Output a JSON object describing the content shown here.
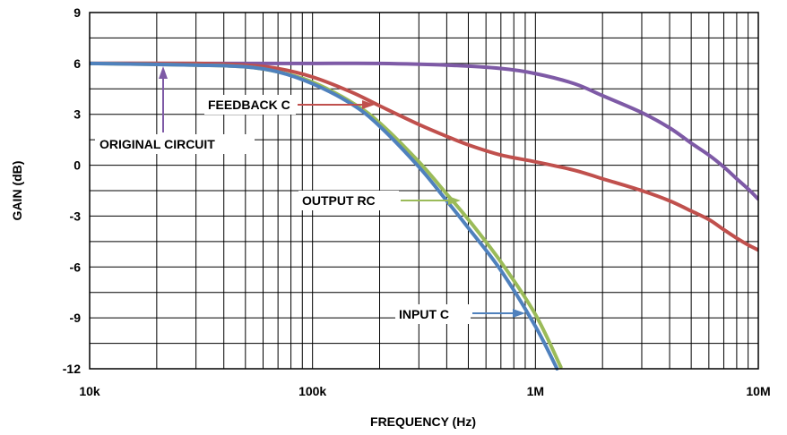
{
  "chart_data": {
    "type": "line",
    "title": "",
    "xlabel": "FREQUENCY (Hz)",
    "ylabel": "GAIN (dB)",
    "x_scale": "log",
    "xlim": [
      10000,
      10000000
    ],
    "ylim": [
      -12,
      9
    ],
    "grid": true,
    "x_tick_labels": [
      "10k",
      "100k",
      "1M",
      "10M"
    ],
    "y_ticks": [
      9,
      6,
      3,
      0,
      -3,
      -6,
      -9,
      -12
    ],
    "series": [
      {
        "name": "ORIGINAL CIRCUIT",
        "color": "#7e5aa6",
        "x": [
          10000,
          20000,
          50000,
          100000,
          200000,
          400000,
          700000,
          1000000,
          1500000,
          2000000,
          3000000,
          4000000,
          5000000,
          6000000,
          7000000,
          8000000,
          9000000,
          10000000
        ],
        "y": [
          6,
          6,
          6,
          6,
          6,
          5.9,
          5.7,
          5.4,
          4.8,
          4.1,
          3.1,
          2.2,
          1.3,
          0.6,
          -0.1,
          -0.8,
          -1.4,
          -2
        ]
      },
      {
        "name": "FEEDBACK C",
        "color": "#c0504d",
        "x": [
          10000,
          30000,
          50000,
          70000,
          100000,
          150000,
          200000,
          300000,
          400000,
          500000,
          700000,
          1000000,
          1500000,
          2000000,
          3000000,
          4000000,
          5000000,
          6000000,
          7000000,
          8000000,
          9000000,
          10000000
        ],
        "y": [
          6,
          6,
          5.9,
          5.7,
          5.2,
          4.3,
          3.5,
          2.4,
          1.7,
          1.2,
          0.6,
          0.2,
          -0.3,
          -0.8,
          -1.5,
          -2.1,
          -2.7,
          -3.2,
          -3.8,
          -4.3,
          -4.7,
          -5
        ]
      },
      {
        "name": "OUTPUT RC",
        "color": "#9bbb59",
        "x": [
          10000,
          30000,
          50000,
          70000,
          100000,
          150000,
          200000,
          300000,
          400000,
          500000,
          700000,
          1000000,
          1300000
        ],
        "y": [
          6,
          5.9,
          5.8,
          5.5,
          4.9,
          3.7,
          2.5,
          0.2,
          -1.7,
          -3.2,
          -5.7,
          -8.8,
          -11.9
        ]
      },
      {
        "name": "INPUT C",
        "color": "#4f81bd",
        "x": [
          10000,
          30000,
          50000,
          70000,
          100000,
          150000,
          200000,
          300000,
          400000,
          500000,
          700000,
          1000000,
          1250000
        ],
        "y": [
          6,
          5.9,
          5.8,
          5.5,
          4.8,
          3.6,
          2.3,
          -0.1,
          -2.1,
          -3.7,
          -6.2,
          -9.5,
          -12
        ]
      }
    ],
    "annotations": [
      {
        "label": "ORIGINAL CIRCUIT",
        "target_series": "ORIGINAL CIRCUIT"
      },
      {
        "label": "FEEDBACK C",
        "target_series": "FEEDBACK C"
      },
      {
        "label": "OUTPUT RC",
        "target_series": "OUTPUT RC"
      },
      {
        "label": "INPUT C",
        "target_series": "INPUT C"
      }
    ]
  }
}
